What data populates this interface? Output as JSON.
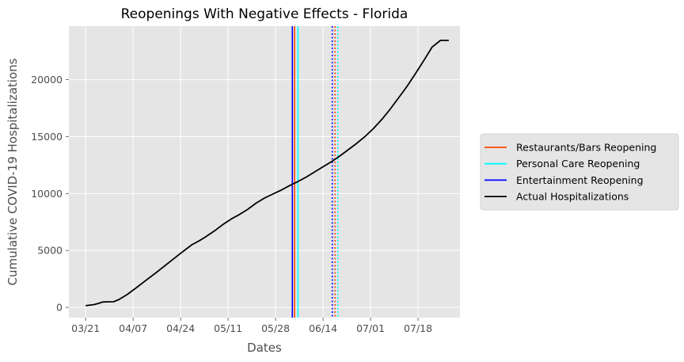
{
  "chart_data": {
    "type": "line",
    "title": "Reopenings With Negative Effects - Florida",
    "xlabel": "Dates",
    "ylabel": "Cumulative COVID-19 Hospitalizations",
    "x_tick_labels": [
      "03/21",
      "04/07",
      "04/24",
      "05/11",
      "05/28",
      "06/14",
      "07/01",
      "07/18"
    ],
    "x_tick_days": [
      0,
      17,
      34,
      51,
      68,
      85,
      102,
      119
    ],
    "xlim_days": [
      -6,
      134
    ],
    "y_ticks": [
      0,
      5000,
      10000,
      15000,
      20000
    ],
    "ylim": [
      -900,
      24700
    ],
    "grid": true,
    "legend_position": "outside-right",
    "series": [
      {
        "name": "Actual Hospitalizations",
        "color": "#000000",
        "x_days": [
          0,
          3,
          5,
          6,
          8,
          10,
          12,
          15,
          18,
          22,
          26,
          30,
          34,
          38,
          41,
          43,
          46,
          49,
          52,
          55,
          58,
          61,
          64,
          67,
          70,
          73,
          76,
          79,
          82,
          85,
          88,
          91,
          94,
          97,
          100,
          103,
          106,
          109,
          112,
          115,
          118,
          121,
          124,
          127,
          130
        ],
        "y": [
          150,
          250,
          380,
          470,
          490,
          500,
          700,
          1150,
          1700,
          2450,
          3200,
          3980,
          4750,
          5500,
          5900,
          6200,
          6700,
          7250,
          7750,
          8150,
          8600,
          9150,
          9600,
          9950,
          10300,
          10700,
          11050,
          11450,
          11900,
          12350,
          12800,
          13300,
          13850,
          14400,
          15000,
          15700,
          16500,
          17400,
          18400,
          19400,
          20500,
          21650,
          22850,
          23450,
          23450
        ]
      }
    ],
    "reopenings": [
      {
        "name": "Restaurants/Bars Reopening",
        "color": "#ff4500",
        "solid_day": 74.8,
        "dotted_day": 89.3
      },
      {
        "name": "Personal Care Reopening",
        "color": "#00ffff",
        "solid_day": 76.0,
        "dotted_day": 90.3
      },
      {
        "name": "Entertainment Reopening",
        "color": "#0000ff",
        "solid_day": 74.0,
        "dotted_day": 88.3
      }
    ],
    "legend": [
      {
        "label": "Restaurants/Bars Reopening",
        "color": "#ff4500"
      },
      {
        "label": "Personal Care Reopening",
        "color": "#00ffff"
      },
      {
        "label": "Entertainment Reopening",
        "color": "#0000ff"
      },
      {
        "label": "Actual Hospitalizations",
        "color": "#000000"
      }
    ]
  }
}
